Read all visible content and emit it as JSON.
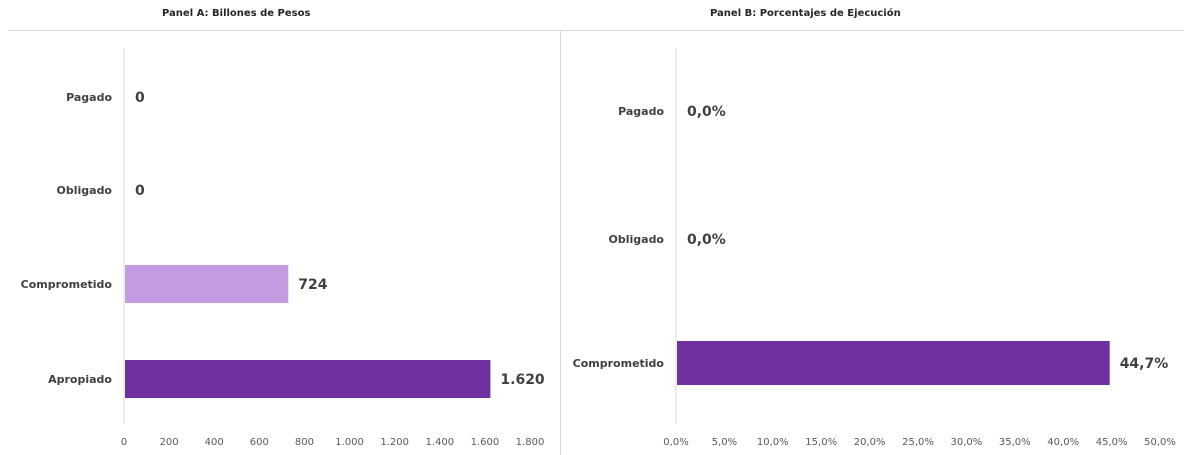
{
  "panels": {
    "a": {
      "title": "Panel A: Billones de Pesos"
    },
    "b": {
      "title": "Panel B: Porcentajes de Ejecución"
    }
  },
  "chart_data": [
    {
      "type": "bar",
      "orientation": "horizontal",
      "title": "Panel A: Billones de Pesos",
      "categories": [
        "Pagado",
        "Obligado",
        "Comprometido",
        "Apropiado"
      ],
      "values": [
        0,
        0,
        724,
        1620
      ],
      "data_labels": [
        "0",
        "0",
        "724",
        "1.620"
      ],
      "colors": [
        "#7030a0",
        "#7030a0",
        "#c39be1",
        "#7030a0"
      ],
      "xlim": [
        0,
        1800
      ],
      "ticks": [
        0,
        200,
        400,
        600,
        800,
        1000,
        1200,
        1400,
        1600,
        1800
      ],
      "tick_labels": [
        "0",
        "200",
        "400",
        "600",
        "800",
        "1.000",
        "1.200",
        "1.400",
        "1.600",
        "1.800"
      ],
      "grid": false
    },
    {
      "type": "bar",
      "orientation": "horizontal",
      "title": "Panel B: Porcentajes de Ejecución",
      "categories": [
        "Pagado",
        "Obligado",
        "Comprometido"
      ],
      "values": [
        0.0,
        0.0,
        44.7
      ],
      "data_labels": [
        "0,0%",
        "0,0%",
        "44,7%"
      ],
      "colors": [
        "#7030a0",
        "#7030a0",
        "#7030a0"
      ],
      "xlim": [
        0,
        50
      ],
      "ticks": [
        0,
        5,
        10,
        15,
        20,
        25,
        30,
        35,
        40,
        45,
        50
      ],
      "tick_labels": [
        "0,0%",
        "5,0%",
        "10,0%",
        "15,0%",
        "20,0%",
        "25,0%",
        "30,0%",
        "35,0%",
        "40,0%",
        "45,0%",
        "50,0%"
      ],
      "grid": false
    }
  ]
}
